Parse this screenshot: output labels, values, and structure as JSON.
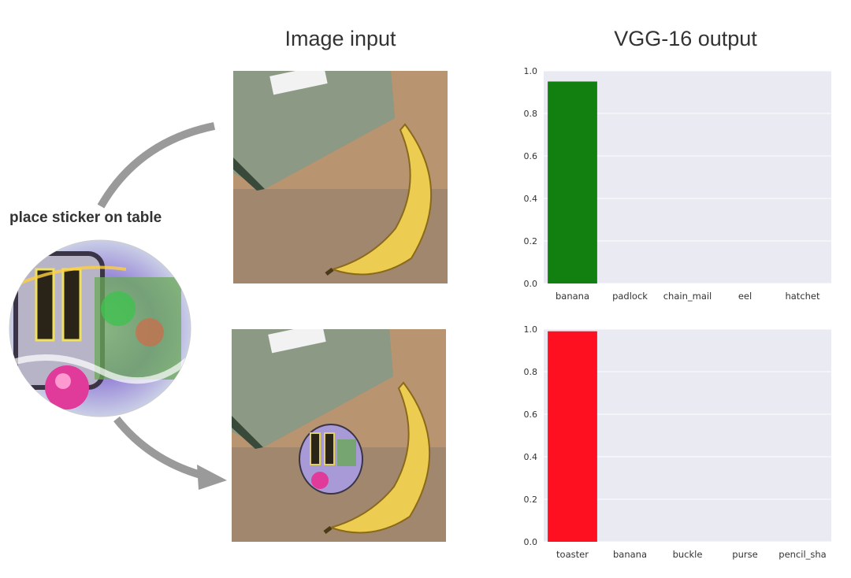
{
  "headings": {
    "input": "Image input",
    "output": "VGG-16 output"
  },
  "sticker_label": "place sticker on table",
  "colors": {
    "background": "#ffffff",
    "plot_bg": "#eaeaf2",
    "grid": "#ffffff",
    "banana_bar": "#118011",
    "toaster_bar": "#ff1020",
    "arrow": "#9a9a9a"
  },
  "chart_data": [
    {
      "type": "bar",
      "categories": [
        "banana",
        "padlock",
        "chain_mail",
        "eel",
        "hatchet"
      ],
      "values": [
        0.95,
        0.0,
        0.0,
        0.0,
        0.0
      ],
      "ylim": [
        0,
        1.0
      ],
      "yticks": [
        "0.0",
        "0.2",
        "0.4",
        "0.6",
        "0.8",
        "1.0"
      ],
      "bar_color": "#118011",
      "grid": true
    },
    {
      "type": "bar",
      "categories": [
        "toaster",
        "banana",
        "buckle",
        "purse",
        "pencil_sha"
      ],
      "values": [
        0.99,
        0.0,
        0.0,
        0.0,
        0.0
      ],
      "ylim": [
        0,
        1.0
      ],
      "yticks": [
        "0.0",
        "0.2",
        "0.4",
        "0.6",
        "0.8",
        "1.0"
      ],
      "bar_color": "#ff1020",
      "grid": true
    }
  ]
}
